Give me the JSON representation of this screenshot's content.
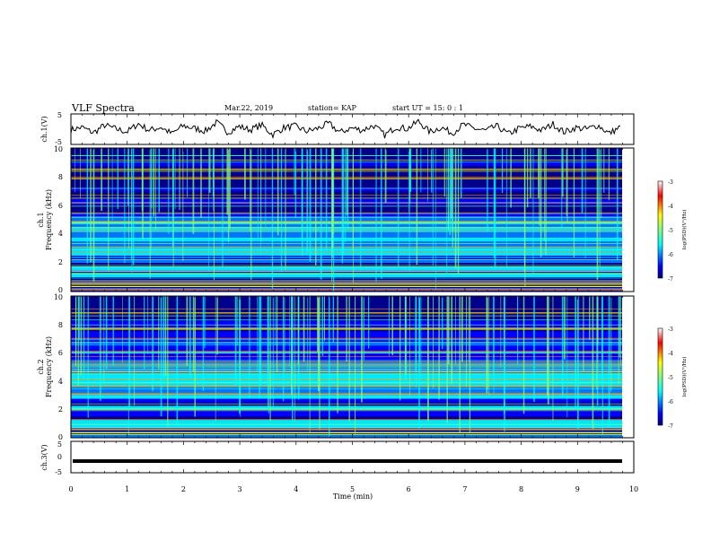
{
  "header": {
    "title": "VLF Spectra",
    "date": "Mar.22, 2019",
    "station": "station= KAP",
    "start": "start  UT =   15: 0  : 1"
  },
  "chart_data": [
    {
      "type": "line",
      "panel": "ch1-waveform",
      "ylabel": "ch.1(V)",
      "ylim": [
        -5,
        5
      ],
      "yticks": [
        "5",
        "-5"
      ],
      "xlim": [
        0,
        10
      ],
      "series": [
        {
          "values": [
            -0.2,
            0.6,
            -1.2,
            1.3,
            0.1,
            -0.9,
            1.8,
            -0.4,
            0.7,
            -1.5,
            1.1,
            0.3,
            -0.6,
            2.2,
            -1.0,
            0.9,
            -0.2,
            1.4,
            -1.8,
            0.5,
            1.0,
            -0.7,
            0.2,
            1.9,
            -1.1,
            0.4,
            -0.3,
            1.2,
            -2.0,
            0.8,
            0.1,
            2.6,
            -0.9,
            0.6,
            -1.3,
            1.5,
            0.2,
            -0.5,
            1.0,
            -1.6,
            0.3,
            0.9,
            -0.4,
            1.7,
            -1.0,
            0.5,
            0.0,
            1.3,
            -1.4,
            0.7
          ]
        }
      ]
    },
    {
      "type": "heatmap",
      "panel": "ch1-spectrogram",
      "ylabel": "ch.1",
      "ylabel2": "Frequency (kHz)",
      "yticks": [
        "0",
        "2",
        "4",
        "6",
        "8",
        "10"
      ],
      "ylim": [
        0,
        10
      ],
      "xlim": [
        0,
        10
      ],
      "colorbar": {
        "label": "log(PSD)(V²/Hz)",
        "ticks": [
          "-3",
          "-4",
          "-5",
          "-6",
          "-7"
        ],
        "range": [
          -7,
          -3
        ]
      }
    },
    {
      "type": "heatmap",
      "panel": "ch2-spectrogram",
      "ylabel": "ch.2",
      "ylabel2": "Frequency (kHz)",
      "yticks": [
        "0",
        "2",
        "4",
        "6",
        "8",
        "10"
      ],
      "ylim": [
        0,
        10
      ],
      "xlim": [
        0,
        10
      ],
      "colorbar": {
        "label": "log(PSD)(V²/Hz)",
        "ticks": [
          "-3",
          "-4",
          "-5",
          "-6",
          "-7"
        ],
        "range": [
          -7,
          -3
        ]
      }
    },
    {
      "type": "line",
      "panel": "ch3-waveform",
      "ylabel": "ch.3(V)",
      "ylim": [
        -5,
        5
      ],
      "yticks": [
        "5",
        "0",
        "-5"
      ],
      "xlim": [
        0,
        10
      ],
      "series": [
        {
          "values": [
            -1.3,
            -1.3
          ]
        }
      ]
    }
  ],
  "xaxis": {
    "label": "Time (min)",
    "ticks": [
      "0",
      "1",
      "2",
      "3",
      "4",
      "5",
      "6",
      "7",
      "8",
      "9",
      "10"
    ]
  },
  "colors": {
    "spectrum": [
      "#00007f",
      "#0000ff",
      "#007fff",
      "#00ffff",
      "#7fff7f",
      "#ffff00",
      "#ff7f00",
      "#ff0000",
      "#7f0000"
    ]
  }
}
